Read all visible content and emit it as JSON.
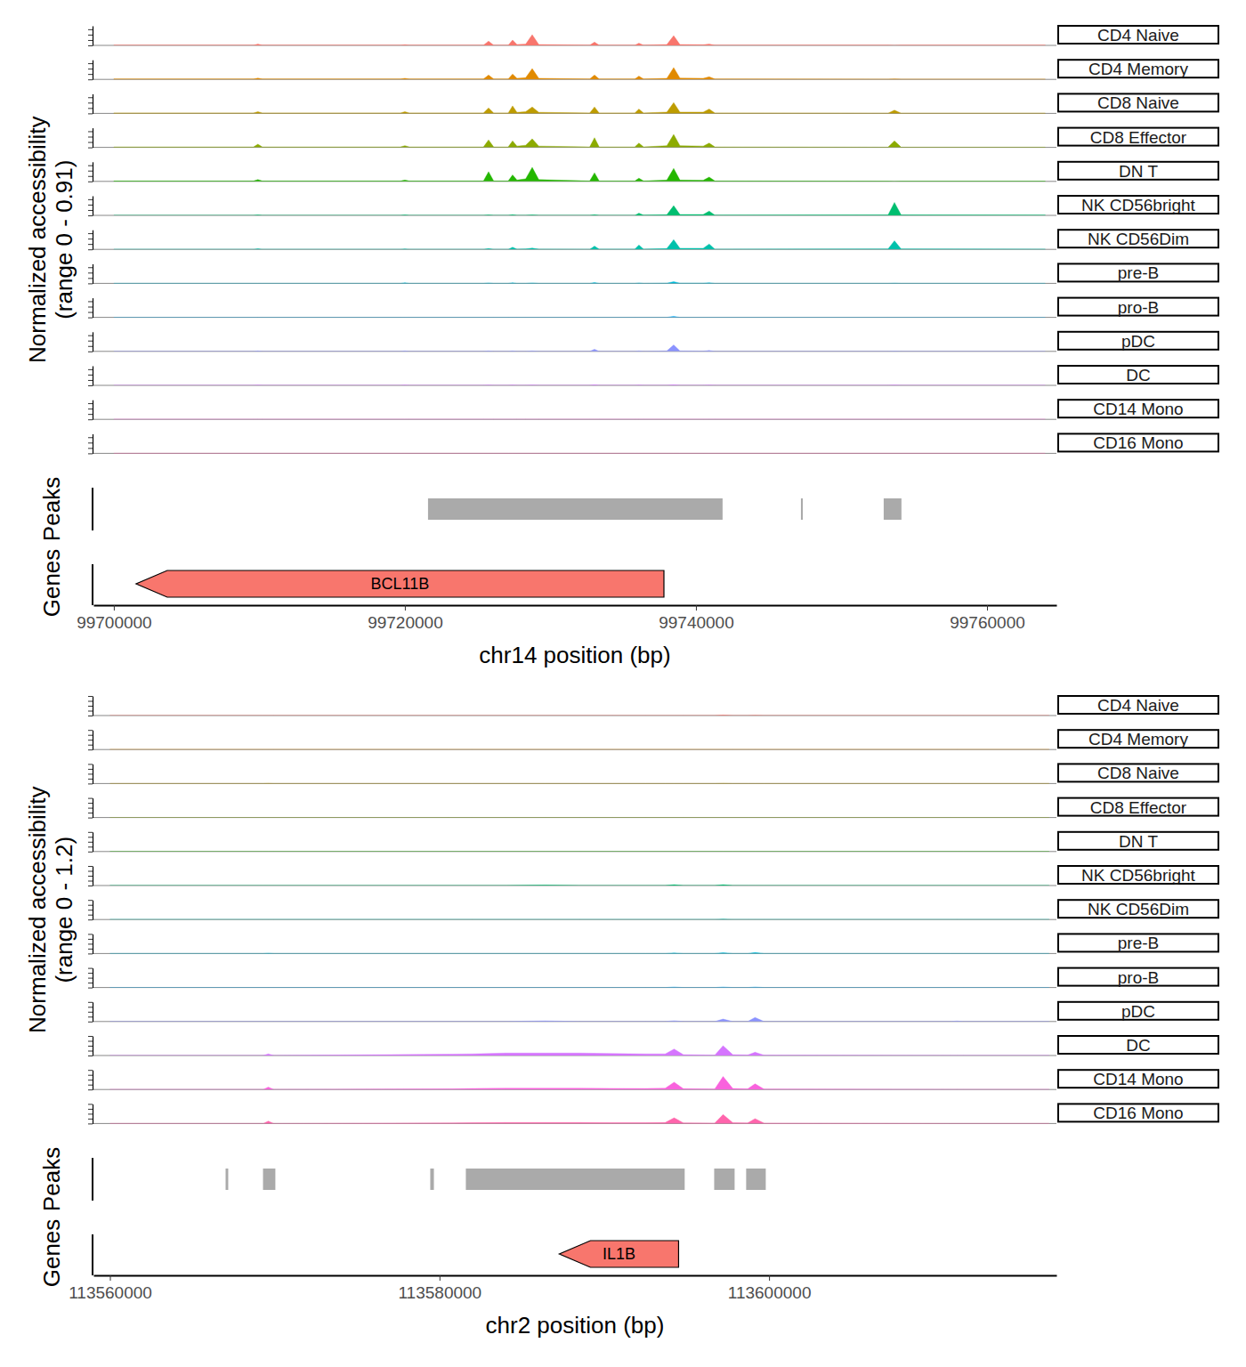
{
  "chart_data": [
    {
      "type": "area",
      "ylabel": [
        "Normalized accessibility",
        "(range 0 - 0.91)"
      ],
      "xlabel": "chr14 position (bp)",
      "xlim": [
        99698600,
        99764770
      ],
      "xticks": [
        99700000,
        99720000,
        99740000,
        99760000
      ],
      "ylim": [
        0,
        0.91
      ],
      "yticks": [
        0,
        0.25,
        0.5,
        0.75
      ],
      "tick_labels": "x",
      "x": [
        99700000,
        99709600,
        99709900,
        99710200,
        99719700,
        99720000,
        99720300,
        99725400,
        99725750,
        99726100,
        99727100,
        99727400,
        99727700,
        99728300,
        99728750,
        99729200,
        99732700,
        99733030,
        99733350,
        99735800,
        99736080,
        99736400,
        99738000,
        99738470,
        99738900,
        99740500,
        99740910,
        99741300,
        99753200,
        99753640,
        99754100,
        99764000
      ],
      "series": [
        {
          "name": "CD4 Naive",
          "color": "#F8766D",
          "values": [
            0.01,
            0.01,
            0.06,
            0.01,
            0.01,
            0.03,
            0.01,
            0.01,
            0.2,
            0.01,
            0.01,
            0.25,
            0.04,
            0.06,
            0.5,
            0.04,
            0.01,
            0.15,
            0.01,
            0.01,
            0.1,
            0.01,
            0.04,
            0.45,
            0.04,
            0.03,
            0.06,
            0.01,
            0.01,
            0,
            0.01,
            0.01
          ]
        },
        {
          "name": "CD4 Memory",
          "color": "#E18A00",
          "values": [
            0.02,
            0.02,
            0.06,
            0.02,
            0.02,
            0.05,
            0.02,
            0.02,
            0.2,
            0.02,
            0.02,
            0.25,
            0.05,
            0.08,
            0.5,
            0.05,
            0.02,
            0.2,
            0.02,
            0.02,
            0.15,
            0.02,
            0.05,
            0.55,
            0.06,
            0.05,
            0.12,
            0.02,
            0.01,
            0.02,
            0.01,
            0.01
          ]
        },
        {
          "name": "CD8 Naive",
          "color": "#BE9C00",
          "values": [
            0.02,
            0.02,
            0.08,
            0.02,
            0.02,
            0.08,
            0.02,
            0.02,
            0.25,
            0.02,
            0.02,
            0.35,
            0.05,
            0.08,
            0.3,
            0.05,
            0.02,
            0.3,
            0.02,
            0.02,
            0.2,
            0.02,
            0.06,
            0.5,
            0.06,
            0.06,
            0.2,
            0.02,
            0.01,
            0.15,
            0.01,
            0.01
          ]
        },
        {
          "name": "CD8 Effector",
          "color": "#8CAB00",
          "values": [
            0.02,
            0.02,
            0.15,
            0.02,
            0.02,
            0.08,
            0.02,
            0.02,
            0.35,
            0.02,
            0.02,
            0.3,
            0.06,
            0.1,
            0.4,
            0.06,
            0.02,
            0.45,
            0.02,
            0.02,
            0.2,
            0.02,
            0.08,
            0.6,
            0.08,
            0.06,
            0.2,
            0.02,
            0.01,
            0.3,
            0.01,
            0.01
          ]
        },
        {
          "name": "DN T",
          "color": "#24B700",
          "values": [
            0.02,
            0.02,
            0.08,
            0.02,
            0.02,
            0.06,
            0.02,
            0.02,
            0.45,
            0.02,
            0.02,
            0.3,
            0.06,
            0.12,
            0.65,
            0.08,
            0.02,
            0.4,
            0.02,
            0.02,
            0.15,
            0.02,
            0.06,
            0.6,
            0.06,
            0.05,
            0.2,
            0.02,
            0.01,
            0,
            0.01,
            0.01
          ]
        },
        {
          "name": "NK CD56bright",
          "color": "#00BE70",
          "values": [
            0,
            0,
            0.02,
            0,
            0,
            0.02,
            0,
            0,
            0.02,
            0,
            0,
            0.03,
            0,
            0,
            0.02,
            0,
            0,
            0.03,
            0,
            0,
            0.1,
            0.01,
            0.03,
            0.45,
            0.04,
            0.04,
            0.2,
            0.01,
            0.02,
            0.6,
            0.02,
            0.01
          ]
        },
        {
          "name": "NK CD56Dim",
          "color": "#00C1AB",
          "values": [
            0,
            0,
            0.03,
            0,
            0,
            0.02,
            0,
            0,
            0.04,
            0,
            0,
            0.1,
            0.01,
            0.02,
            0.06,
            0.01,
            0,
            0.15,
            0.01,
            0.01,
            0.2,
            0.01,
            0.04,
            0.45,
            0.05,
            0.05,
            0.25,
            0.01,
            0.02,
            0.4,
            0.02,
            0.01
          ]
        },
        {
          "name": "pre-B",
          "color": "#00BBDA",
          "values": [
            0,
            0,
            0,
            0,
            0,
            0.03,
            0,
            0,
            0.02,
            0,
            0,
            0.03,
            0,
            0,
            0.02,
            0,
            0,
            0.04,
            0,
            0,
            0.02,
            0,
            0.01,
            0.08,
            0.01,
            0.01,
            0.03,
            0,
            0,
            0.01,
            0,
            0
          ]
        },
        {
          "name": "pro-B",
          "color": "#00ACFC",
          "values": [
            0,
            0,
            0,
            0,
            0,
            0,
            0,
            0,
            0,
            0,
            0,
            0,
            0,
            0,
            0,
            0,
            0,
            0,
            0,
            0,
            0,
            0,
            0,
            0.05,
            0,
            0,
            0,
            0,
            0,
            0,
            0,
            0
          ]
        },
        {
          "name": "pDC",
          "color": "#8B93FF",
          "values": [
            0,
            0,
            0.02,
            0,
            0,
            0.02,
            0,
            0,
            0.02,
            0,
            0,
            0.02,
            0,
            0,
            0.02,
            0,
            0,
            0.1,
            0,
            0,
            0.02,
            0,
            0.02,
            0.3,
            0.02,
            0.01,
            0.04,
            0,
            0,
            0.01,
            0,
            0
          ]
        },
        {
          "name": "DC",
          "color": "#D575FE",
          "values": [
            0,
            0,
            0.01,
            0,
            0,
            0.01,
            0,
            0,
            0.01,
            0,
            0,
            0.01,
            0,
            0,
            0.01,
            0,
            0,
            0.02,
            0,
            0,
            0.01,
            0,
            0,
            0.02,
            0,
            0,
            0.01,
            0,
            0,
            0.01,
            0,
            0
          ]
        },
        {
          "name": "CD14 Mono",
          "color": "#F962DD",
          "values": [
            0,
            0,
            0,
            0,
            0,
            0,
            0,
            0,
            0,
            0,
            0,
            0,
            0,
            0,
            0,
            0,
            0,
            0,
            0,
            0,
            0,
            0,
            0,
            0,
            0,
            0,
            0,
            0,
            0,
            0,
            0,
            0
          ]
        },
        {
          "name": "CD16 Mono",
          "color": "#FF65AC",
          "values": [
            0,
            0,
            0,
            0,
            0,
            0,
            0,
            0,
            0,
            0,
            0,
            0,
            0,
            0,
            0,
            0,
            0,
            0,
            0,
            0,
            0,
            0,
            0,
            0,
            0,
            0,
            0,
            0,
            0,
            0,
            0,
            0
          ]
        }
      ],
      "peaks": {
        "label": "Peaks",
        "ranges": [
          [
            99721590,
            99741830
          ],
          [
            99747215,
            99747340
          ],
          [
            99752900,
            99754120
          ]
        ]
      },
      "genes": {
        "label": "Genes",
        "color": "#F8766D",
        "items": [
          {
            "name": "BCL11B",
            "start": 99737800,
            "end": 99701530
          }
        ]
      }
    },
    {
      "type": "area",
      "ylabel": [
        "Normalized accessibility",
        "(range 0 - 1.2)"
      ],
      "xlabel": "chr2 position (bp)",
      "xlim": [
        113559000,
        113617440
      ],
      "xticks": [
        113560000,
        113580000,
        113600000
      ],
      "ylim": [
        0,
        1.2
      ],
      "yticks": [
        0,
        0.3,
        0.6,
        0.9,
        1.2
      ],
      "tick_labels": "x",
      "x": [
        113560000,
        113569300,
        113569610,
        113569950,
        113580500,
        113582000,
        113584000,
        113586400,
        113588500,
        113590500,
        113592500,
        113593700,
        113594240,
        113594800,
        113596700,
        113597210,
        113597800,
        113598700,
        113599150,
        113599700,
        113611000,
        113611400,
        113611800,
        113617000
      ],
      "series": [
        {
          "name": "CD4 Naive",
          "color": "#F8766D",
          "values": [
            0,
            0,
            0,
            0,
            0,
            0,
            0,
            0,
            0,
            0,
            0,
            0,
            0,
            0,
            0,
            0.03,
            0,
            0,
            0.01,
            0,
            0,
            0,
            0,
            0
          ]
        },
        {
          "name": "CD4 Memory",
          "color": "#E18A00",
          "values": [
            0,
            0,
            0,
            0,
            0,
            0,
            0,
            0,
            0,
            0,
            0,
            0,
            0,
            0,
            0,
            0,
            0,
            0,
            0,
            0,
            0,
            0,
            0,
            0
          ]
        },
        {
          "name": "CD8 Naive",
          "color": "#BE9C00",
          "values": [
            0,
            0,
            0.01,
            0,
            0,
            0,
            0,
            0,
            0,
            0,
            0,
            0,
            0,
            0,
            0,
            0.01,
            0,
            0,
            0,
            0,
            0,
            0,
            0,
            0
          ]
        },
        {
          "name": "CD8 Effector",
          "color": "#8CAB00",
          "values": [
            0,
            0,
            0,
            0,
            0,
            0,
            0,
            0,
            0,
            0,
            0,
            0,
            0,
            0,
            0,
            0,
            0,
            0,
            0,
            0,
            0,
            0,
            0,
            0
          ]
        },
        {
          "name": "DN T",
          "color": "#24B700",
          "values": [
            0,
            0,
            0,
            0,
            0,
            0,
            0,
            0,
            0,
            0,
            0,
            0,
            0,
            0,
            0,
            0,
            0,
            0,
            0,
            0,
            0,
            0,
            0,
            0
          ]
        },
        {
          "name": "NK CD56bright",
          "color": "#00BE70",
          "values": [
            0,
            0,
            0,
            0,
            0,
            0,
            0,
            0.03,
            0,
            0,
            0,
            0,
            0.05,
            0,
            0,
            0.05,
            0,
            0,
            0,
            0,
            0,
            0,
            0,
            0
          ]
        },
        {
          "name": "NK CD56Dim",
          "color": "#00C1AB",
          "values": [
            0,
            0,
            0,
            0,
            0,
            0,
            0,
            0,
            0,
            0,
            0,
            0,
            0,
            0,
            0,
            0.02,
            0,
            0,
            0,
            0,
            0,
            0,
            0,
            0
          ]
        },
        {
          "name": "pre-B",
          "color": "#00BBDA",
          "values": [
            0,
            0,
            0.02,
            0,
            0,
            0,
            0,
            0,
            0,
            0,
            0,
            0,
            0.03,
            0,
            0,
            0.05,
            0,
            0,
            0.06,
            0,
            0,
            0,
            0,
            0
          ]
        },
        {
          "name": "pro-B",
          "color": "#00ACFC",
          "values": [
            0,
            0,
            0,
            0,
            0,
            0,
            0,
            0,
            0,
            0,
            0,
            0,
            0.03,
            0,
            0,
            0.03,
            0,
            0,
            0.03,
            0,
            0,
            0,
            0,
            0
          ]
        },
        {
          "name": "pDC",
          "color": "#8B93FF",
          "values": [
            0,
            0,
            0,
            0,
            0,
            0,
            0,
            0.04,
            0,
            0,
            0,
            0,
            0.05,
            0,
            0,
            0.15,
            0,
            0,
            0.25,
            0,
            0,
            0.03,
            0,
            0
          ]
        },
        {
          "name": "DC",
          "color": "#D575FE",
          "values": [
            0,
            0,
            0.1,
            0,
            0.08,
            0.1,
            0.15,
            0.15,
            0.15,
            0.12,
            0.1,
            0.1,
            0.4,
            0.05,
            0.02,
            0.6,
            0.05,
            0.03,
            0.2,
            0.02,
            0,
            0,
            0,
            0
          ]
        },
        {
          "name": "CD14 Mono",
          "color": "#F962DD",
          "values": [
            0,
            0,
            0.15,
            0,
            0.04,
            0.06,
            0.08,
            0.08,
            0.08,
            0.07,
            0.06,
            0.08,
            0.45,
            0.05,
            0.03,
            0.8,
            0.06,
            0.04,
            0.35,
            0.02,
            0,
            0,
            0,
            0
          ]
        },
        {
          "name": "CD16 Mono",
          "color": "#FF65AC",
          "values": [
            0,
            0,
            0.15,
            0,
            0.03,
            0.05,
            0.06,
            0.06,
            0.06,
            0.05,
            0.05,
            0.06,
            0.35,
            0.04,
            0.02,
            0.55,
            0.05,
            0.03,
            0.3,
            0.02,
            0,
            0,
            0,
            0
          ]
        }
      ],
      "peaks": {
        "label": "Peaks",
        "ranges": [
          [
            113567020,
            113567180
          ],
          [
            113569290,
            113570040
          ],
          [
            113579440,
            113579660
          ],
          [
            113581600,
            113594880
          ],
          [
            113596670,
            113597910
          ],
          [
            113598610,
            113599800
          ]
        ]
      },
      "genes": {
        "label": "Genes",
        "color": "#F8766D",
        "items": [
          {
            "name": "IL1B",
            "start": 113594510,
            "end": 113587270
          }
        ]
      }
    }
  ]
}
